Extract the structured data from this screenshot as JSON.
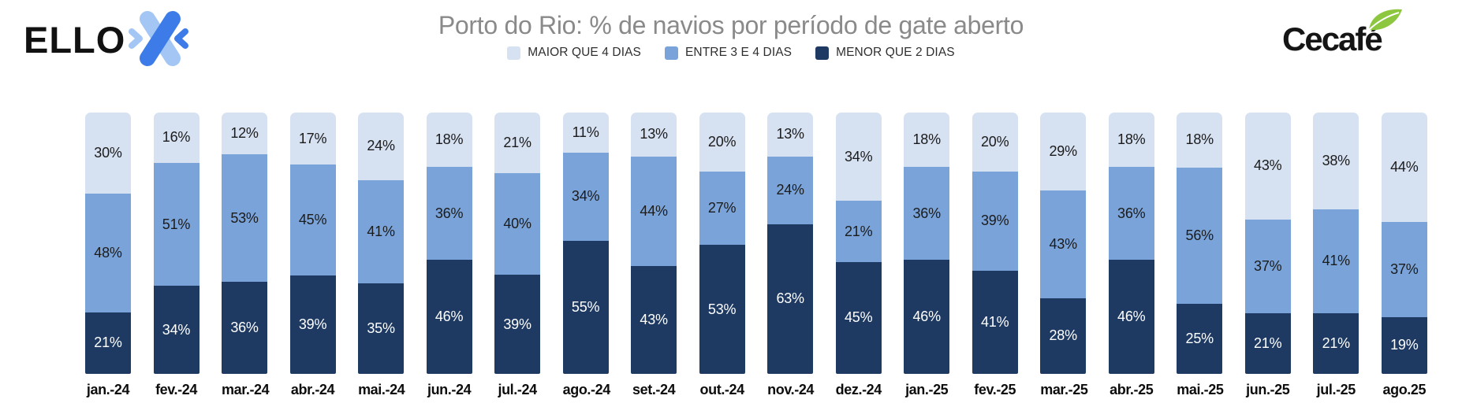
{
  "header": {
    "brand_left_text": "ELLO",
    "title": "Porto do Rio: % de navios por período de gate aberto",
    "brand_right_text": "Cecafé"
  },
  "colors": {
    "title_gray": "#8a8a8a",
    "bar_light_blue": "#D6E1F2",
    "bar_medium_blue": "#7AA4D9",
    "bar_dark_navy": "#1E3A63",
    "logo_vivid_blue": "#3D7CE8",
    "logo_light_blue": "#A3C6F4",
    "leaf_green": "#8DC63F"
  },
  "chart_data": {
    "type": "bar",
    "stacked": true,
    "units": "percent",
    "title": "Porto do Rio: % de navios por período de gate aberto",
    "legend_position": "top",
    "grid": false,
    "categories": [
      "jan.-24",
      "fev.-24",
      "mar.-24",
      "abr.-24",
      "mai.-24",
      "jun.-24",
      "jul.-24",
      "ago.-24",
      "set.-24",
      "out.-24",
      "nov.-24",
      "dez.-24",
      "jan.-25",
      "fev.-25",
      "mar.-25",
      "abr.-25",
      "mai.-25",
      "jun.-25",
      "jul.-25",
      "ago.25"
    ],
    "series": [
      {
        "name": "MAIOR QUE 4 DIAS",
        "color": "#D6E1F2",
        "label_color": "#1b1b1b",
        "values": [
          30,
          16,
          12,
          17,
          24,
          18,
          21,
          11,
          13,
          20,
          13,
          34,
          18,
          20,
          29,
          18,
          18,
          43,
          38,
          44
        ]
      },
      {
        "name": "ENTRE 3 E 4 DIAS",
        "color": "#7AA4D9",
        "label_color": "#1b1b1b",
        "values": [
          48,
          51,
          53,
          45,
          41,
          36,
          40,
          34,
          44,
          27,
          24,
          21,
          36,
          39,
          43,
          36,
          56,
          37,
          41,
          37
        ]
      },
      {
        "name": "MENOR QUE 2 DIAS",
        "color": "#1E3A63",
        "label_color": "#ffffff",
        "values": [
          21,
          34,
          36,
          39,
          35,
          46,
          39,
          55,
          43,
          53,
          63,
          45,
          46,
          41,
          28,
          46,
          25,
          21,
          21,
          19
        ]
      }
    ]
  }
}
